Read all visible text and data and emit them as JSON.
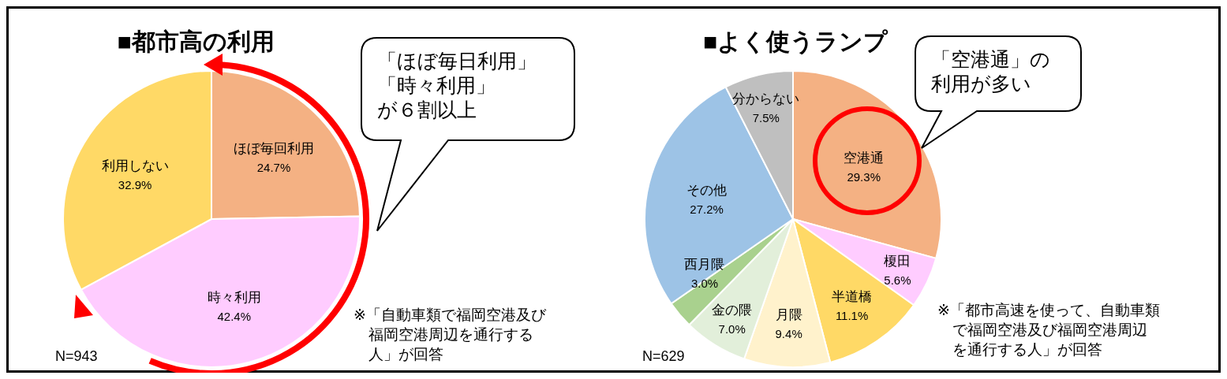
{
  "chart_data": [
    {
      "type": "pie",
      "title": "■都市高の利用",
      "categories": [
        "ほぼ毎回利用",
        "時々利用",
        "利用しない"
      ],
      "values": [
        24.7,
        42.4,
        32.9
      ],
      "value_labels": [
        "24.7%",
        "42.4%",
        "32.9%"
      ],
      "colors": [
        "#f4b183",
        "#ffccff",
        "#ffd966"
      ],
      "annotations": [
        "「ほぼ毎日利用」「時々利用」が６割以上",
        "N=943",
        "※「自動車類で福岡空港及び福岡空港周辺を通行する人」が回答"
      ]
    },
    {
      "type": "pie",
      "title": "■よく使うランプ",
      "categories": [
        "空港通",
        "榎田",
        "半道橋",
        "月隈",
        "金の隈",
        "西月隈",
        "その他",
        "分からない"
      ],
      "values": [
        29.3,
        5.6,
        11.1,
        9.4,
        7.0,
        3.0,
        27.2,
        7.5
      ],
      "value_labels": [
        "29.3%",
        "5.6%",
        "11.1%",
        "9.4%",
        "7.0%",
        "3.0%",
        "27.2%",
        "7.5%"
      ],
      "colors": [
        "#f4b183",
        "#ffccff",
        "#ffd966",
        "#fff2cc",
        "#e2efda",
        "#a9d18e",
        "#9dc3e6",
        "#bfbfbf"
      ],
      "annotations": [
        "「空港通」の利用が多い",
        "N=629",
        "※「都市高速を使って、自動車類で福岡空港及び福岡空港周辺を通行する人」が回答"
      ]
    }
  ]
}
